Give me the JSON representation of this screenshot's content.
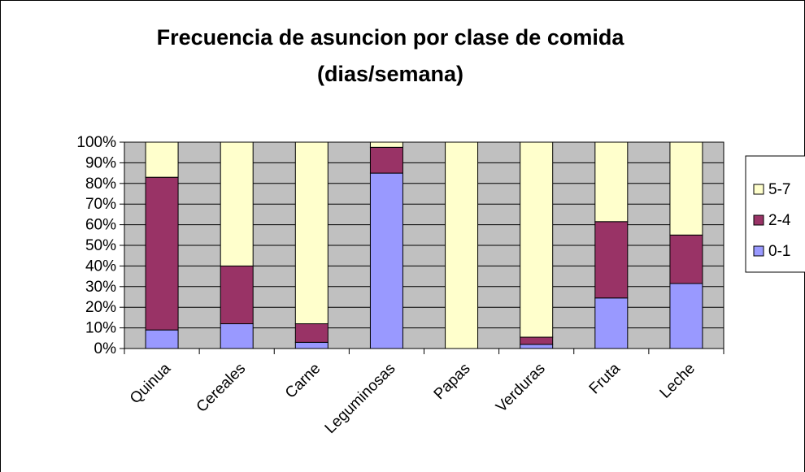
{
  "chart_data": {
    "type": "stacked_bar_percent",
    "title": [
      "Frecuencia de asuncion por clase de comida",
      "(dias/semana)"
    ],
    "categories": [
      "Quinua",
      "Cereales",
      "Carne",
      "Leguminosas",
      "Papas",
      "Verduras",
      "Fruta",
      "Leche"
    ],
    "series": [
      {
        "name": "0-1",
        "color": "#9999ff",
        "values": [
          9,
          12,
          3,
          85,
          0,
          2,
          24.5,
          31.5
        ]
      },
      {
        "name": "2-4",
        "color": "#993366",
        "values": [
          74,
          28,
          9,
          12.5,
          0,
          3.5,
          37,
          23.5
        ]
      },
      {
        "name": "5-7",
        "color": "#ffffcc",
        "values": [
          17,
          60,
          88,
          2.5,
          100,
          94.5,
          38.5,
          45
        ]
      }
    ],
    "ylim": [
      0,
      100
    ],
    "yticks": [
      {
        "value": 0,
        "label": "0%"
      },
      {
        "value": 10,
        "label": "10%"
      },
      {
        "value": 20,
        "label": "20%"
      },
      {
        "value": 30,
        "label": "30%"
      },
      {
        "value": 40,
        "label": "40%"
      },
      {
        "value": 50,
        "label": "50%"
      },
      {
        "value": 60,
        "label": "60%"
      },
      {
        "value": 70,
        "label": "70%"
      },
      {
        "value": 80,
        "label": "80%"
      },
      {
        "value": 90,
        "label": "90%"
      },
      {
        "value": 100,
        "label": "100%"
      }
    ],
    "grid": true,
    "legend": "right"
  }
}
